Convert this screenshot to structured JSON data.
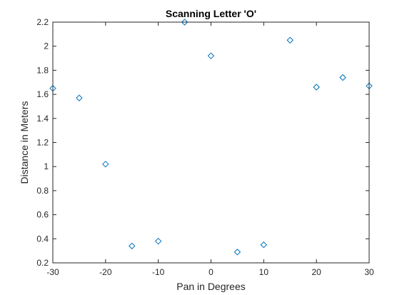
{
  "chart_data": {
    "type": "scatter",
    "title": "Scanning Letter 'O'",
    "xlabel": "Pan in Degrees",
    "ylabel": "Distance in Meters",
    "xlim": [
      -30,
      30
    ],
    "ylim": [
      0.2,
      2.2
    ],
    "xticks": [
      -30,
      -20,
      -10,
      0,
      10,
      20,
      30
    ],
    "yticks": [
      0.2,
      0.4,
      0.6,
      0.8,
      1,
      1.2,
      1.4,
      1.6,
      1.8,
      2,
      2.2
    ],
    "xtick_labels": [
      "-30",
      "-20",
      "-10",
      "0",
      "10",
      "20",
      "30"
    ],
    "ytick_labels": [
      "0.2",
      "0.4",
      "0.6",
      "0.8",
      "1",
      "1.2",
      "1.4",
      "1.6",
      "1.8",
      "2",
      "2.2"
    ],
    "marker": "diamond",
    "marker_color": "#0072bd",
    "grid": false,
    "box": true,
    "series": [
      {
        "x": [
          -30,
          -25,
          -20,
          -15,
          -10,
          -5,
          0,
          5,
          10,
          15,
          20,
          25,
          30
        ],
        "y": [
          1.65,
          1.57,
          1.02,
          0.34,
          0.38,
          2.2,
          1.92,
          0.29,
          0.35,
          2.05,
          1.66,
          1.74,
          1.67
        ]
      }
    ]
  }
}
